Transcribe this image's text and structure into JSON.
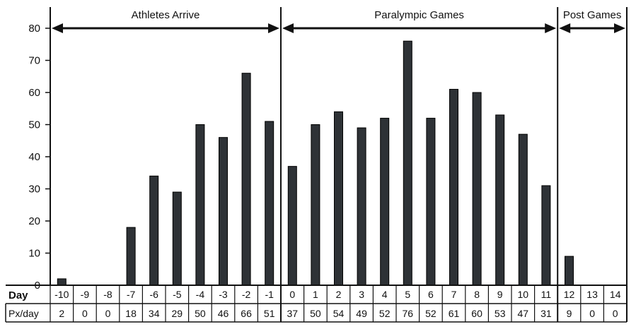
{
  "chart_data": {
    "type": "bar",
    "categories": [
      "-10",
      "-9",
      "-8",
      "-7",
      "-6",
      "-5",
      "-4",
      "-3",
      "-2",
      "-1",
      "0",
      "1",
      "2",
      "3",
      "4",
      "5",
      "6",
      "7",
      "8",
      "9",
      "10",
      "11",
      "12",
      "13",
      "14"
    ],
    "values": [
      2,
      0,
      0,
      18,
      34,
      29,
      50,
      46,
      66,
      51,
      37,
      50,
      54,
      49,
      52,
      76,
      52,
      61,
      60,
      53,
      47,
      31,
      9,
      0,
      0
    ],
    "ylim": [
      0,
      80
    ],
    "yticks": [
      "0",
      "10",
      "20",
      "30",
      "40",
      "50",
      "60",
      "70",
      "80"
    ],
    "table": {
      "row1_label": "Day",
      "row2_label": "Px/day"
    },
    "phases": [
      {
        "label": "Athletes Arrive",
        "start_day": "-10",
        "end_day": "-1"
      },
      {
        "label": "Paralympic Games",
        "start_day": "0",
        "end_day": "11"
      },
      {
        "label": "Post Games",
        "start_day": "12",
        "end_day": "14"
      }
    ],
    "bar_color": "#2e3236",
    "grid": false
  }
}
